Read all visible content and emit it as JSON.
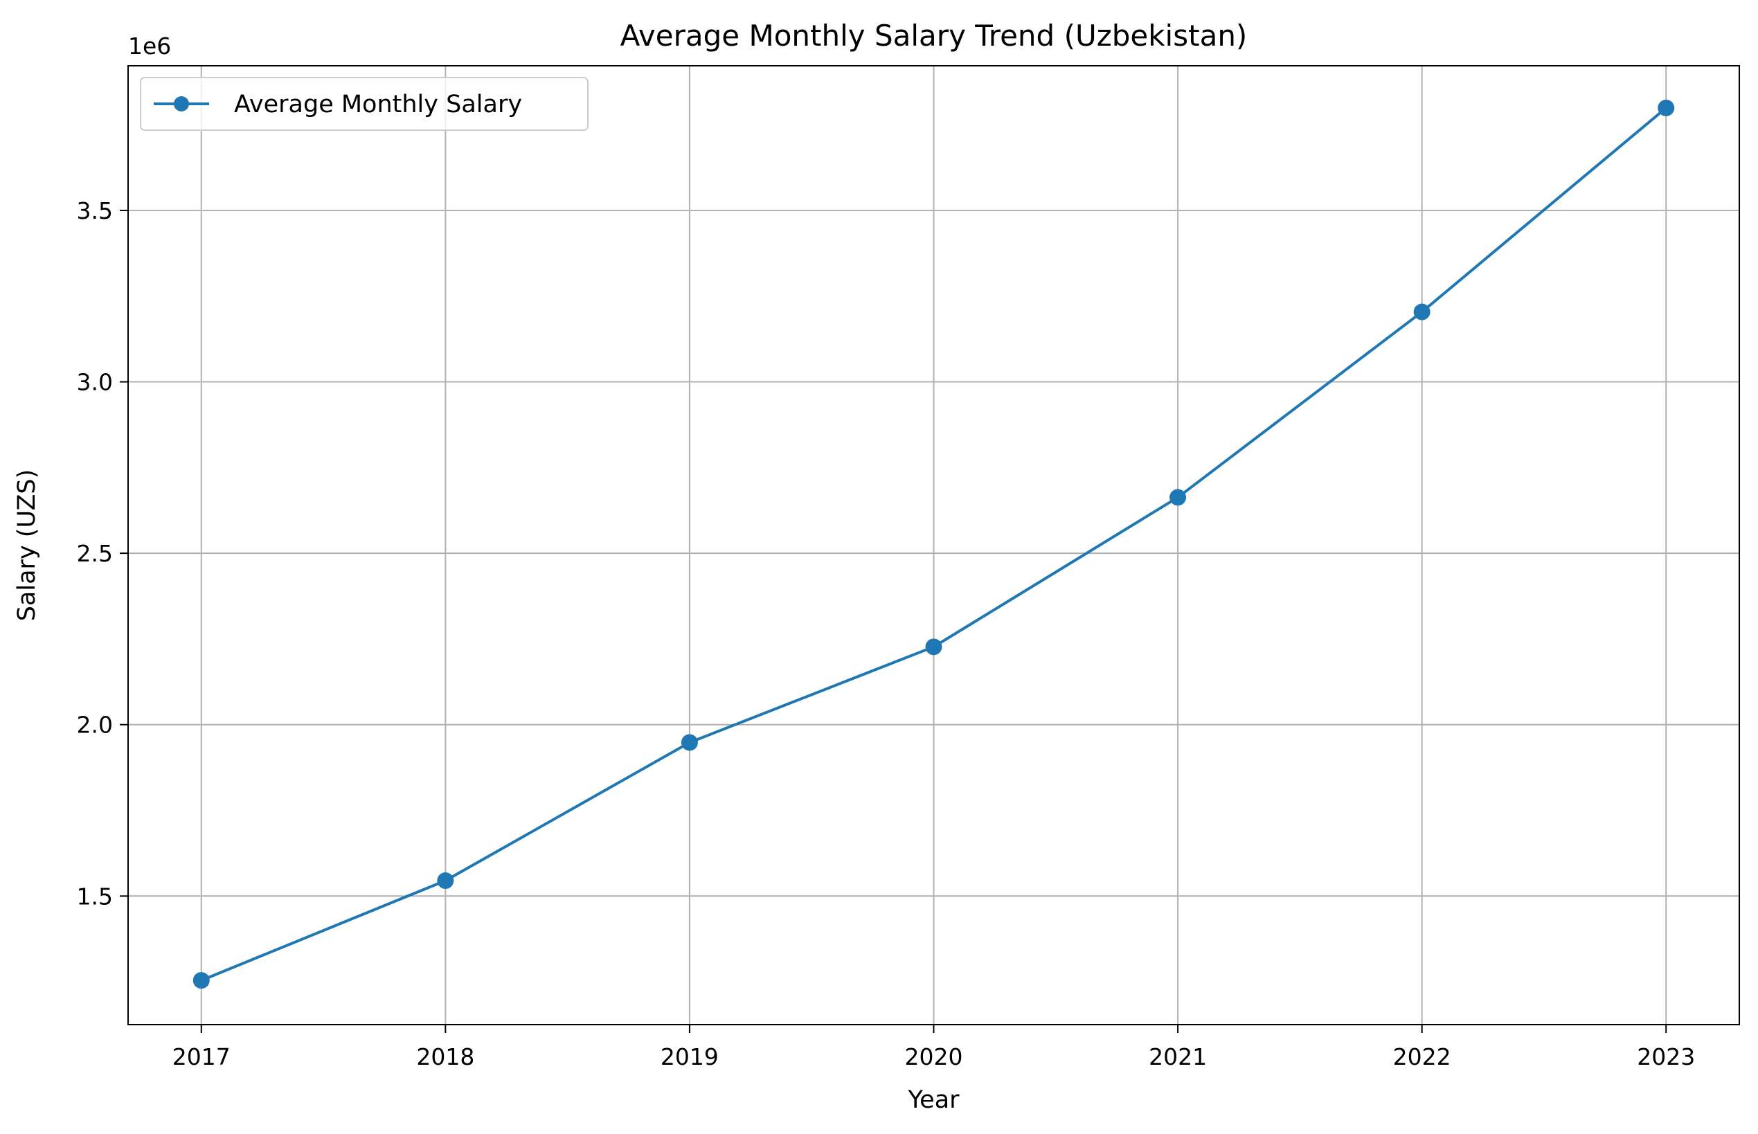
{
  "chart_data": {
    "type": "line",
    "title": "Average Monthly Salary Trend (Uzbekistan)",
    "xlabel": "Year",
    "ylabel": "Salary (UZS)",
    "y_offset_label": "1e6",
    "x": [
      2017,
      2018,
      2019,
      2020,
      2021,
      2022,
      2023
    ],
    "x_tick_labels": [
      "2017",
      "2018",
      "2019",
      "2020",
      "2021",
      "2022",
      "2023"
    ],
    "y_tick_values": [
      1.5,
      2.0,
      2.5,
      3.0,
      3.5
    ],
    "y_tick_labels": [
      "1.5",
      "2.0",
      "2.5",
      "3.0",
      "3.5"
    ],
    "xlim": [
      2016.7,
      2023.3
    ],
    "ylim": [
      1.125,
      3.922
    ],
    "grid": true,
    "legend_position": "top-left",
    "series": [
      {
        "name": "Average Monthly Salary",
        "color": "#1f77b4",
        "marker": "circle",
        "values": [
          1.254,
          1.545,
          1.948,
          2.227,
          2.663,
          3.204,
          3.799
        ]
      }
    ]
  }
}
